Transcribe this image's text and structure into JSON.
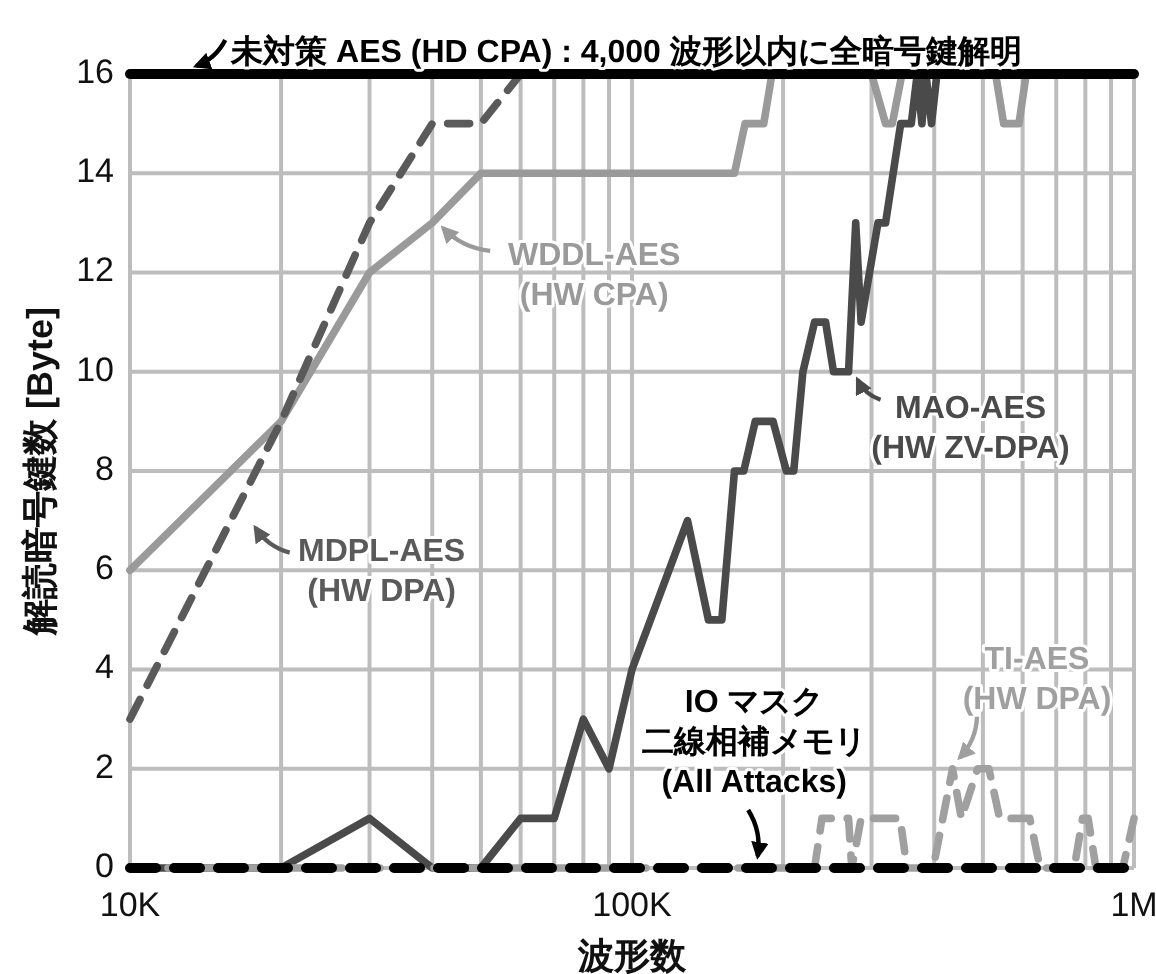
{
  "chart_data": {
    "type": "line",
    "xlabel": "波形数",
    "ylabel": "解読暗号鍵数 [Byte]",
    "log": "x",
    "grid": true,
    "xlim": [
      10000,
      1000000
    ],
    "ylim": [
      0,
      16
    ],
    "xticks": [
      {
        "value": 10000,
        "label": "10K"
      },
      {
        "value": 20000,
        "label": null
      },
      {
        "value": 30000,
        "label": null
      },
      {
        "value": 40000,
        "label": null
      },
      {
        "value": 50000,
        "label": null
      },
      {
        "value": 60000,
        "label": null
      },
      {
        "value": 70000,
        "label": null
      },
      {
        "value": 80000,
        "label": null
      },
      {
        "value": 90000,
        "label": null
      },
      {
        "value": 100000,
        "label": "100K"
      },
      {
        "value": 200000,
        "label": null
      },
      {
        "value": 300000,
        "label": null
      },
      {
        "value": 400000,
        "label": null
      },
      {
        "value": 500000,
        "label": null
      },
      {
        "value": 600000,
        "label": null
      },
      {
        "value": 700000,
        "label": null
      },
      {
        "value": 800000,
        "label": null
      },
      {
        "value": 900000,
        "label": null
      },
      {
        "value": 1000000,
        "label": "1M"
      }
    ],
    "yticks": [
      0,
      2,
      4,
      6,
      8,
      10,
      12,
      14,
      16
    ],
    "series": [
      {
        "color": "#9a9a9a",
        "line_style": "solid",
        "x": [
          10000,
          20000,
          30000,
          40000,
          50000,
          160000,
          168000,
          183000,
          190000,
          300000,
          320000,
          330000,
          345000,
          530000,
          550000,
          590000,
          610000,
          1000000
        ],
        "values": [
          6,
          9,
          12,
          13,
          14,
          14,
          15,
          15,
          16,
          16,
          15,
          15,
          16,
          16,
          15,
          15,
          16,
          16
        ]
      },
      {
        "color": "#5a5a5a",
        "line_style": "dashed",
        "x": [
          10000,
          20000,
          30000,
          40000,
          50000,
          60000,
          1000000
        ],
        "values": [
          3,
          9,
          13,
          15,
          15,
          16,
          16
        ]
      },
      {
        "color": "#4a4a4a",
        "line_style": "solid",
        "x": [
          10000,
          20000,
          30000,
          40000,
          50000,
          60000,
          70000,
          80000,
          90000,
          100000,
          129000,
          142000,
          151000,
          160000,
          167000,
          176000,
          191000,
          203000,
          210000,
          219000,
          231000,
          243000,
          252000,
          270000,
          279000,
          286000,
          309000,
          320000,
          343000,
          360000,
          370000,
          378000,
          385000,
          395000,
          405000,
          1000000
        ],
        "values": [
          0,
          0,
          1,
          0,
          0,
          1,
          1,
          3,
          2,
          4,
          7,
          5,
          5,
          8,
          8,
          9,
          9,
          8,
          8,
          10,
          11,
          11,
          10,
          10,
          13,
          11,
          13,
          13,
          15,
          15,
          16,
          15,
          16,
          15,
          16,
          16
        ]
      },
      {
        "color": "#a0a0a0",
        "line_style": "dashed",
        "x": [
          10000,
          231000,
          239000,
          270000,
          274000,
          286000,
          342000,
          353000,
          398000,
          435000,
          453000,
          488000,
          514000,
          540000,
          620000,
          650000,
          760000,
          790000,
          810000,
          840000,
          950000,
          1000000
        ],
        "values": [
          0,
          0,
          1,
          1,
          0,
          1,
          1,
          0,
          0,
          2,
          1,
          2,
          2,
          1,
          1,
          0,
          0,
          1,
          1,
          0,
          0,
          1
        ]
      },
      {
        "color": "#000000",
        "line_style": "solid",
        "x": [
          10000,
          1000000
        ],
        "values": [
          16,
          16
        ]
      },
      {
        "color": "#000000",
        "line_style": "dashed",
        "x": [
          10000,
          1000000
        ],
        "values": [
          0,
          0
        ]
      }
    ],
    "annotations": [
      {
        "text": "未対策 AES (HD CPA) : 4,000 波形以内に全暗号鍵解明",
        "x": 13000,
        "y": 16
      },
      {
        "text": "WDDL-AES\n(HW CPA)",
        "x": 40000,
        "y": 13
      },
      {
        "text": "MDPL-AES\n(HW DPA)",
        "x": 17000,
        "y": 7
      },
      {
        "text": "MAO-AES\n(HW ZV-DPA)",
        "x": 270000,
        "y": 10
      },
      {
        "text": "TI-AES\n(HW DPA)",
        "x": 440000,
        "y": 2
      },
      {
        "text": "IO マスク二線相補メモリ\n(All Attacks)",
        "x": 180000,
        "y": 0
      }
    ]
  }
}
